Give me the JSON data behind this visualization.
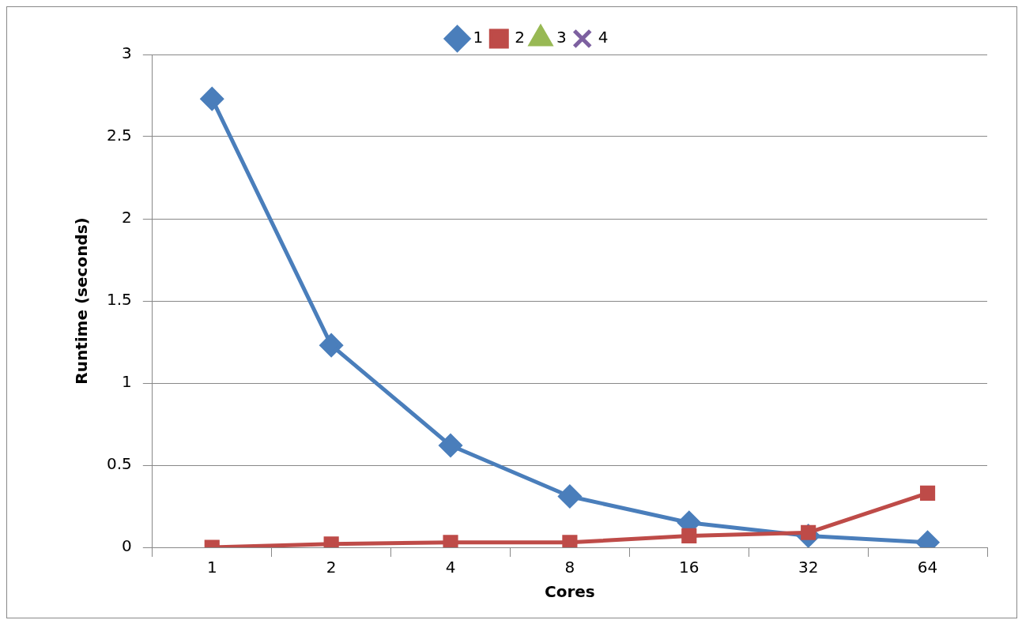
{
  "chart_data": {
    "type": "line",
    "xlabel": "Cores",
    "ylabel": "Runtime (seconds)",
    "categories": [
      "1",
      "2",
      "4",
      "8",
      "16",
      "32",
      "64"
    ],
    "series": [
      {
        "name": "1",
        "color": "#4a7ebb",
        "marker": "diamond",
        "values": [
          2.73,
          1.23,
          0.62,
          0.31,
          0.15,
          0.07,
          0.03
        ]
      },
      {
        "name": "2",
        "color": "#be4b48",
        "marker": "square",
        "values": [
          0,
          0.02,
          0.03,
          0.03,
          0.07,
          0.09,
          0.33
        ]
      },
      {
        "name": "3",
        "color": "#98b954",
        "marker": "triangle",
        "values": [
          null,
          null,
          null,
          null,
          null,
          null,
          null
        ]
      },
      {
        "name": "4",
        "color": "#7d60a0",
        "marker": "cross",
        "values": [
          null,
          null,
          null,
          null,
          null,
          null,
          null
        ]
      }
    ],
    "ylim": [
      0,
      3
    ],
    "yticks": [
      0,
      0.5,
      1,
      1.5,
      2,
      2.5,
      3
    ],
    "grid": "y",
    "legend": "top",
    "line_style": "solid"
  }
}
